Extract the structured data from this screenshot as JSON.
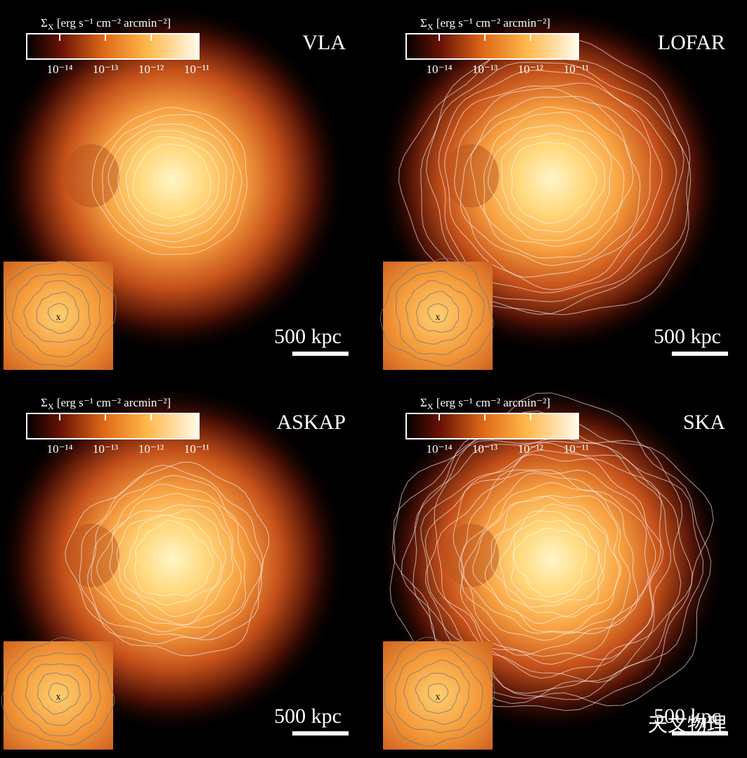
{
  "panels": [
    {
      "telescope": "VLA",
      "scale_bar": "500 kpc",
      "inset_marker": "x"
    },
    {
      "telescope": "LOFAR",
      "scale_bar": "500 kpc",
      "inset_marker": "x"
    },
    {
      "telescope": "ASKAP",
      "scale_bar": "500 kpc",
      "inset_marker": "x"
    },
    {
      "telescope": "SKA",
      "scale_bar": "500 kpc",
      "inset_marker": "x"
    }
  ],
  "colorbar": {
    "symbol": "Σ",
    "subscript": "X",
    "unit": " [erg s⁻¹ cm⁻² arcmin⁻²]",
    "ticks": [
      "10⁻¹⁴",
      "10⁻¹³",
      "10⁻¹²",
      "10⁻¹¹"
    ]
  },
  "watermark": "天文物理"
}
